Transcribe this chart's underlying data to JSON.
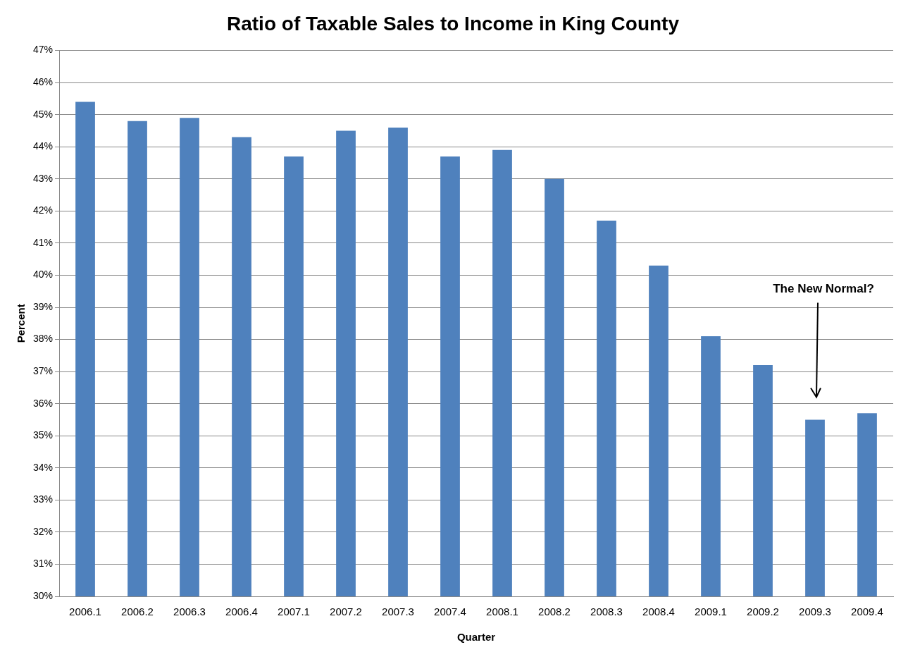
{
  "chart_data": {
    "type": "bar",
    "title": "Ratio of Taxable Sales to Income in King County",
    "xlabel": "Quarter",
    "ylabel": "Percent",
    "categories": [
      "2006.1",
      "2006.2",
      "2006.3",
      "2006.4",
      "2007.1",
      "2007.2",
      "2007.3",
      "2007.4",
      "2008.1",
      "2008.2",
      "2008.3",
      "2008.4",
      "2009.1",
      "2009.2",
      "2009.3",
      "2009.4"
    ],
    "values": [
      45.4,
      44.8,
      44.9,
      44.3,
      43.7,
      44.5,
      44.6,
      43.7,
      43.9,
      43.0,
      41.7,
      40.3,
      38.1,
      37.2,
      35.5,
      35.7
    ],
    "color": "#4f81bd",
    "ylim": [
      30,
      47
    ],
    "yticks": [
      {
        "value": 30,
        "label": "30%"
      },
      {
        "value": 31,
        "label": "31%"
      },
      {
        "value": 32,
        "label": "32%"
      },
      {
        "value": 33,
        "label": "33%"
      },
      {
        "value": 34,
        "label": "34%"
      },
      {
        "value": 35,
        "label": "35%"
      },
      {
        "value": 36,
        "label": "36%"
      },
      {
        "value": 37,
        "label": "37%"
      },
      {
        "value": 38,
        "label": "38%"
      },
      {
        "value": 39,
        "label": "39%"
      },
      {
        "value": 40,
        "label": "40%"
      },
      {
        "value": 41,
        "label": "41%"
      },
      {
        "value": 42,
        "label": "42%"
      },
      {
        "value": 43,
        "label": "43%"
      },
      {
        "value": 44,
        "label": "44%"
      },
      {
        "value": 45,
        "label": "45%"
      },
      {
        "value": 46,
        "label": "46%"
      },
      {
        "value": 47,
        "label": "47%"
      }
    ],
    "grid": "y",
    "annotations": [
      "The New Normal?"
    ]
  }
}
